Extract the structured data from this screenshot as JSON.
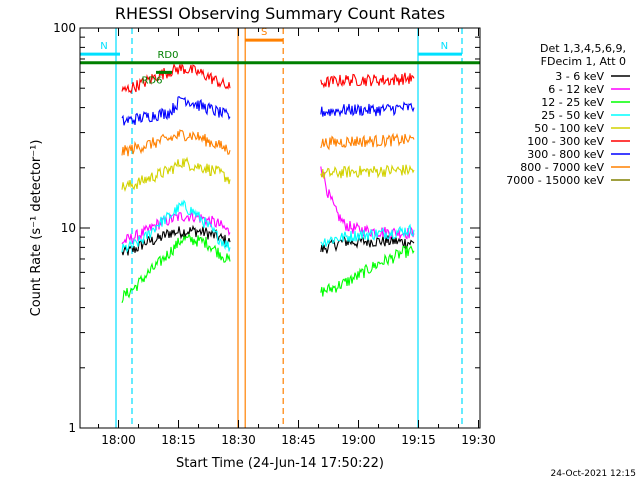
{
  "chart_data": {
    "type": "line",
    "title": "RHESSI Observing Summary Count Rates",
    "xlabel": "Start Time (24-Jun-14 17:50:22)",
    "ylabel": "Count Rate (s⁻¹ detector⁻¹)",
    "yscale": "log",
    "ylim": [
      1,
      100
    ],
    "xlim": [
      0,
      100
    ],
    "x_unit": "minutes after 17:50:22",
    "x_ticks": [
      {
        "value": 9.63,
        "label": "18:00"
      },
      {
        "value": 24.63,
        "label": "18:15"
      },
      {
        "value": 39.63,
        "label": "18:30"
      },
      {
        "value": 54.63,
        "label": "18:45"
      },
      {
        "value": 69.63,
        "label": "19:00"
      },
      {
        "value": 84.63,
        "label": "19:15"
      },
      {
        "value": 99.63,
        "label": "19:30"
      }
    ],
    "y_ticks": [
      {
        "value": 1,
        "label": "1"
      },
      {
        "value": 10,
        "label": "10"
      },
      {
        "value": 100,
        "label": "100"
      }
    ],
    "legend_header": [
      "Det 1,3,4,5,6,9,",
      "FDecim 1, Att 0"
    ],
    "series": [
      {
        "name": "3 - 6 keV",
        "color": "#000000",
        "segments": [
          {
            "x": [
              10.5,
              13.5,
              16.5,
              19.5,
              22.5,
              25.5,
              28.5,
              31.5,
              34.5,
              37.5
            ],
            "y": [
              7.5,
              7.8,
              8.5,
              8.8,
              9.5,
              9.6,
              9.7,
              9.5,
              9.0,
              8.5
            ]
          },
          {
            "x": [
              60.2,
              63,
              66,
              69,
              72,
              75,
              78,
              81,
              83.5
            ],
            "y": [
              7.8,
              8.2,
              8.6,
              8.5,
              8.6,
              8.6,
              8.6,
              8.5,
              8.4
            ]
          }
        ]
      },
      {
        "name": "6 - 12 keV",
        "color": "#ff00ff",
        "segments": [
          {
            "x": [
              10.5,
              13.5,
              16.5,
              19.5,
              22.5,
              25.5,
              28.5,
              31.5,
              34.5,
              37.5
            ],
            "y": [
              8.5,
              9.0,
              9.6,
              10.5,
              11.0,
              11.5,
              11.5,
              11.0,
              10.5,
              9.5
            ]
          },
          {
            "x": [
              60.2,
              62,
              64,
              66,
              68,
              70,
              72,
              75,
              78,
              81,
              83.5
            ],
            "y": [
              21,
              15,
              12,
              10.5,
              10.0,
              9.8,
              9.7,
              9.6,
              9.5,
              9.5,
              9.4
            ]
          }
        ]
      },
      {
        "name": "12 - 25 keV",
        "color": "#00ff00",
        "segments": [
          {
            "x": [
              10.5,
              13.5,
              16.5,
              19.5,
              22.5,
              25.5,
              28.5,
              31.5,
              34.5,
              37.5
            ],
            "y": [
              4.5,
              5.0,
              5.8,
              6.6,
              7.6,
              8.8,
              8.7,
              8.5,
              7.6,
              6.8
            ]
          },
          {
            "x": [
              60.2,
              63,
              66,
              69,
              72,
              75,
              78,
              81,
              83.5
            ],
            "y": [
              4.8,
              5.0,
              5.3,
              5.7,
              6.2,
              6.7,
              7.1,
              7.6,
              7.7
            ]
          }
        ]
      },
      {
        "name": "25 - 50 keV",
        "color": "#00ffff",
        "segments": [
          {
            "x": [
              10.5,
              13.5,
              16.5,
              19.5,
              22.5,
              25.5,
              28.5,
              31.5,
              34.5,
              37.5
            ],
            "y": [
              7.8,
              8.2,
              9.0,
              10.5,
              11.5,
              13.0,
              12.0,
              10.5,
              9.0,
              8.0
            ]
          },
          {
            "x": [
              60.2,
              63,
              66,
              69,
              72,
              75,
              78,
              81,
              83.5
            ],
            "y": [
              8.5,
              8.8,
              9.0,
              9.2,
              9.3,
              9.4,
              9.5,
              9.7,
              9.8
            ]
          }
        ]
      },
      {
        "name": "50 - 100 keV",
        "color": "#d2d200",
        "segments": [
          {
            "x": [
              10.5,
              13.5,
              16.5,
              19.5,
              22.5,
              25.5,
              28.5,
              31.5,
              34.5,
              37.5
            ],
            "y": [
              16.0,
              16.5,
              17.5,
              18.5,
              19.5,
              21.5,
              20.5,
              20.0,
              19.0,
              17.5
            ]
          },
          {
            "x": [
              60.2,
              63,
              66,
              69,
              72,
              75,
              78,
              81,
              83.5
            ],
            "y": [
              18.5,
              18.8,
              19.0,
              19.2,
              19.2,
              19.3,
              19.4,
              19.5,
              19.5
            ]
          }
        ]
      },
      {
        "name": "100 - 300 keV",
        "color": "#ff0000",
        "segments": [
          {
            "x": [
              10.5,
              13.5,
              16.5,
              19.5,
              22.5,
              25.5,
              28.5,
              31.5,
              34.5,
              37.5
            ],
            "y": [
              48,
              51,
              54,
              58,
              61,
              63,
              61,
              58,
              54,
              50
            ]
          },
          {
            "x": [
              60.2,
              63,
              66,
              69,
              72,
              75,
              78,
              81,
              83.5
            ],
            "y": [
              53,
              54,
              55,
              55,
              55,
              55,
              55,
              56,
              56
            ]
          }
        ]
      },
      {
        "name": "300 - 800 keV",
        "color": "#0000ff",
        "segments": [
          {
            "x": [
              10.5,
              13.5,
              16.5,
              19.5,
              22.5,
              25.5,
              28.5,
              31.5,
              34.5,
              37.5
            ],
            "y": [
              34,
              35,
              36,
              37,
              38,
              45,
              42,
              40,
              38,
              36
            ]
          },
          {
            "x": [
              60.2,
              63,
              66,
              69,
              72,
              75,
              78,
              81,
              83.5
            ],
            "y": [
              38,
              38.5,
              39,
              39,
              39,
              39,
              39.5,
              40,
              40
            ]
          }
        ]
      },
      {
        "name": "800 - 7000 keV",
        "color": "#ff8000",
        "segments": [
          {
            "x": [
              10.5,
              13.5,
              16.5,
              19.5,
              22.5,
              25.5,
              28.5,
              31.5,
              34.5,
              37.5
            ],
            "y": [
              24,
              25,
              26,
              27,
              28,
              29.5,
              29,
              27.5,
              26,
              24.5
            ]
          },
          {
            "x": [
              60.2,
              63,
              66,
              69,
              72,
              75,
              78,
              81,
              83.5
            ],
            "y": [
              26.5,
              26.8,
              27,
              27.2,
              27.2,
              27.3,
              27.5,
              27.6,
              27.7
            ]
          }
        ]
      },
      {
        "name": "7000 - 15000 keV",
        "color": "#808000",
        "segments": []
      }
    ],
    "annotations": [
      {
        "label": "N",
        "color": "#00e0ff",
        "x_start": 0,
        "x_end": 10,
        "level": 74
      },
      {
        "label": "N",
        "color": "#00e0ff",
        "x_start": 84.5,
        "x_end": 95.5,
        "level": 74
      },
      {
        "label": "RD0",
        "color": "#008000",
        "x_start": 0,
        "x_end": 100,
        "level": 67
      },
      {
        "label": "RD6",
        "color": "#008000",
        "x_start": 19,
        "x_end": 23,
        "level": 60
      },
      {
        "label": "S",
        "color": "#ff8000",
        "x_start": 41.3,
        "x_end": 50.8,
        "level": 87
      }
    ],
    "vertical_lines": [
      {
        "x": 9.0,
        "color": "#00e0ff",
        "style": "solid"
      },
      {
        "x": 13.0,
        "color": "#00e0ff",
        "style": "dashed"
      },
      {
        "x": 84.5,
        "color": "#00e0ff",
        "style": "solid"
      },
      {
        "x": 95.5,
        "color": "#00e0ff",
        "style": "dashed"
      },
      {
        "x": 39.5,
        "color": "#ff8000",
        "style": "solid"
      },
      {
        "x": 41.3,
        "color": "#ff8000",
        "style": "solid"
      },
      {
        "x": 50.8,
        "color": "#ff8000",
        "style": "dashed"
      }
    ]
  },
  "footer": {
    "date_stamp": "24-Oct-2021 12:15"
  }
}
